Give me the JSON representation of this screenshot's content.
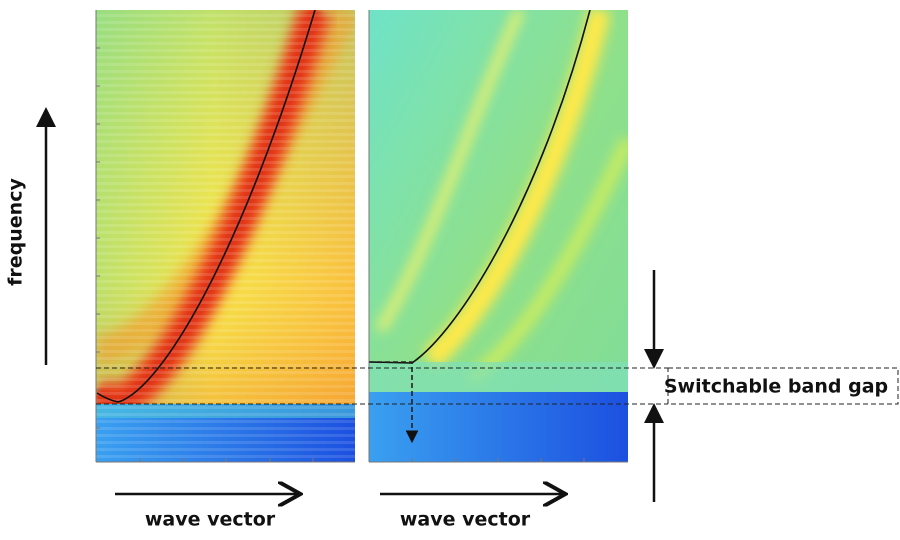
{
  "y_axis_label": "frequency",
  "panels": [
    {
      "x_axis_label": "wave vector"
    },
    {
      "x_axis_label": "wave vector"
    }
  ],
  "annotation": "Switchable band gap"
}
